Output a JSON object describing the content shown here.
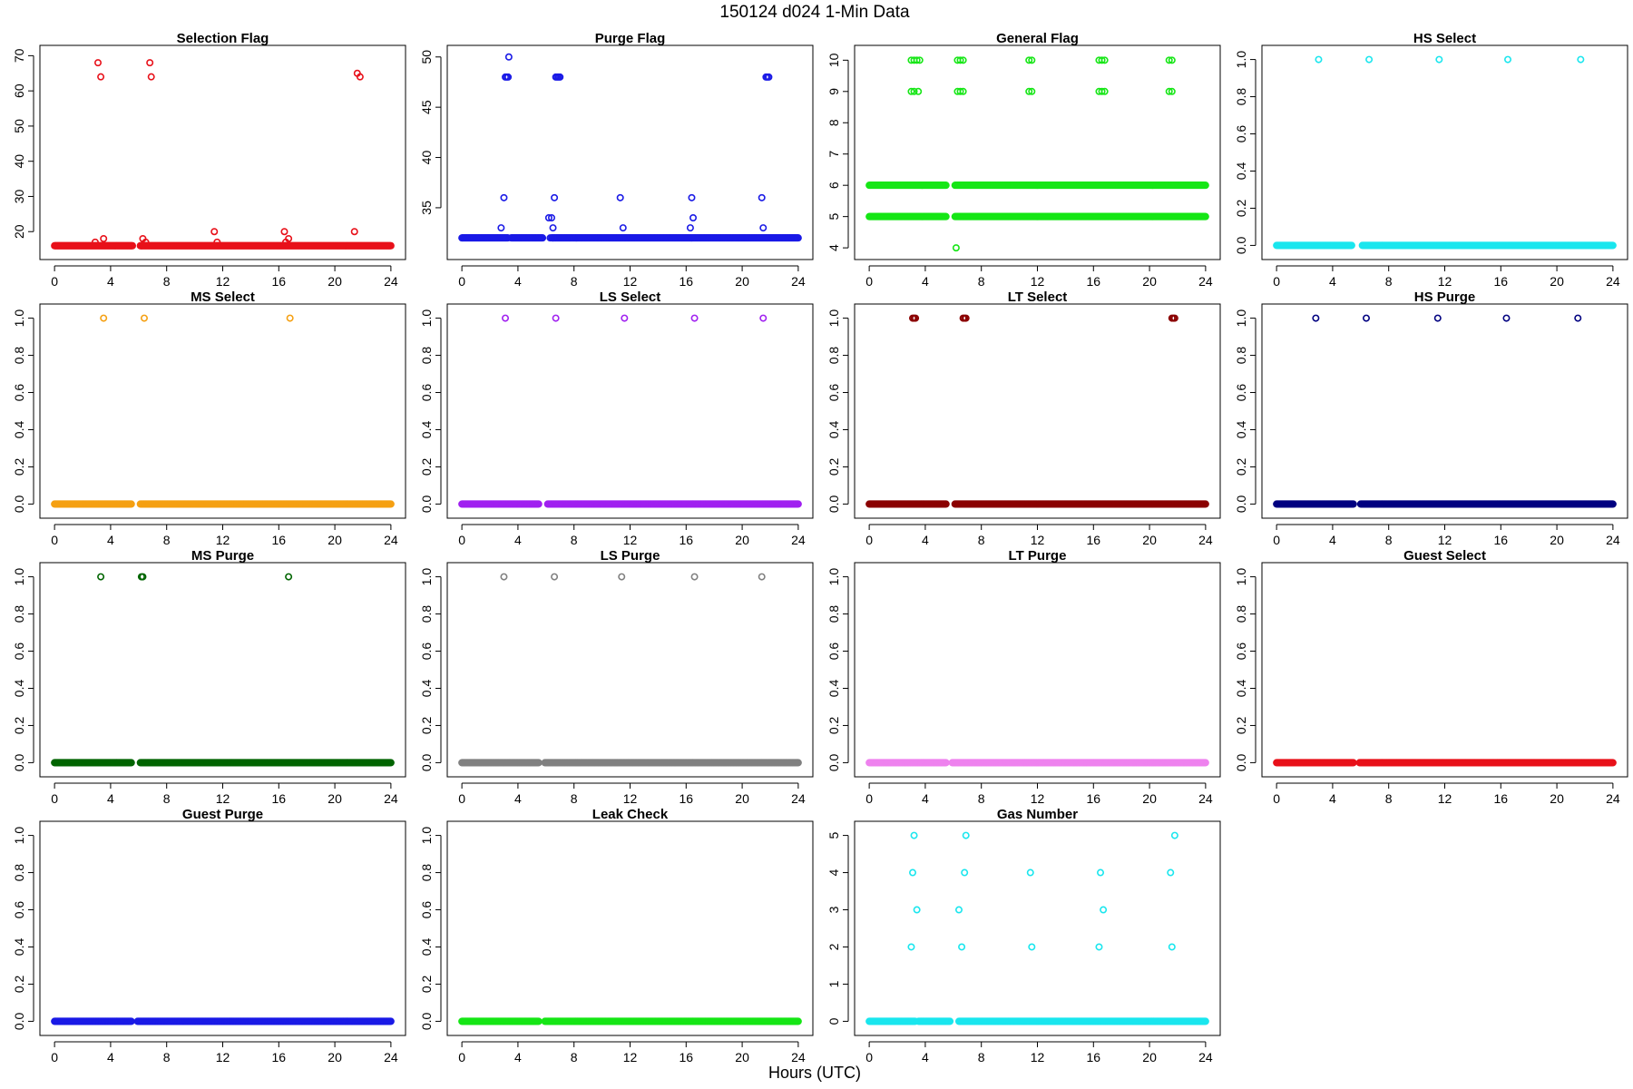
{
  "title": "150124   d024   1-Min Data",
  "xlabel": "Hours (UTC)",
  "chart_data": [
    {
      "type": "scatter",
      "title": "Selection Flag",
      "color": "#e8111a",
      "xlim": [
        0,
        24
      ],
      "ylim": [
        14.5,
        70.5
      ],
      "xticks": [
        0,
        4,
        8,
        12,
        16,
        20,
        24
      ],
      "yticks": [
        20,
        30,
        40,
        50,
        60,
        70
      ],
      "baseline": 16,
      "gaps": [
        [
          5.6,
          6.1
        ]
      ],
      "points": [
        [
          3.1,
          68
        ],
        [
          3.3,
          64
        ],
        [
          3.5,
          18
        ],
        [
          2.9,
          17
        ],
        [
          6.3,
          18
        ],
        [
          6.2,
          16
        ],
        [
          6.5,
          17
        ],
        [
          6.8,
          68
        ],
        [
          6.9,
          64
        ],
        [
          11.4,
          20
        ],
        [
          11.6,
          17
        ],
        [
          16.4,
          20
        ],
        [
          16.5,
          17
        ],
        [
          16.7,
          18
        ],
        [
          21.4,
          20
        ],
        [
          21.6,
          65
        ],
        [
          21.8,
          64
        ]
      ]
    },
    {
      "type": "scatter",
      "title": "Purge Flag",
      "color": "#1a1ae6",
      "xlim": [
        0,
        24
      ],
      "ylim": [
        30.7,
        50.3
      ],
      "xticks": [
        0,
        4,
        8,
        12,
        16,
        20,
        24
      ],
      "yticks": [
        35,
        40,
        45,
        50
      ],
      "baseline": 32,
      "gaps": [
        [
          3.3,
          3.5
        ],
        [
          5.8,
          6.4
        ]
      ],
      "points": [
        [
          3.1,
          48
        ],
        [
          3.2,
          48
        ],
        [
          3.3,
          48
        ],
        [
          3.35,
          50
        ],
        [
          3.0,
          36
        ],
        [
          2.8,
          33
        ],
        [
          6.2,
          34
        ],
        [
          6.4,
          34
        ],
        [
          6.5,
          33
        ],
        [
          6.6,
          36
        ],
        [
          6.7,
          48
        ],
        [
          6.8,
          48
        ],
        [
          6.9,
          48
        ],
        [
          7.0,
          48
        ],
        [
          6.3,
          32
        ],
        [
          6.5,
          32
        ],
        [
          11.3,
          36
        ],
        [
          11.5,
          33
        ],
        [
          16.4,
          36
        ],
        [
          16.5,
          34
        ],
        [
          16.3,
          33
        ],
        [
          21.4,
          36
        ],
        [
          21.5,
          33
        ],
        [
          21.7,
          48
        ],
        [
          21.8,
          48
        ],
        [
          21.9,
          48
        ]
      ]
    },
    {
      "type": "scatter",
      "title": "General Flag",
      "color": "#16e616",
      "xlim": [
        0,
        24
      ],
      "ylim": [
        3.9,
        10.2
      ],
      "xticks": [
        0,
        4,
        8,
        12,
        16,
        20,
        24
      ],
      "yticks": [
        4,
        5,
        6,
        7,
        8,
        9,
        10
      ],
      "baseline": [
        5,
        6
      ],
      "gaps": [
        [
          5.5,
          6.1
        ]
      ],
      "points": [
        [
          3.0,
          10
        ],
        [
          3.2,
          10
        ],
        [
          3.4,
          10
        ],
        [
          3.6,
          10
        ],
        [
          3.0,
          9
        ],
        [
          3.2,
          9
        ],
        [
          3.5,
          9
        ],
        [
          6.3,
          10
        ],
        [
          6.5,
          10
        ],
        [
          6.7,
          10
        ],
        [
          6.3,
          9
        ],
        [
          6.5,
          9
        ],
        [
          6.7,
          9
        ],
        [
          11.4,
          10
        ],
        [
          11.6,
          10
        ],
        [
          11.4,
          9
        ],
        [
          11.6,
          9
        ],
        [
          16.4,
          10
        ],
        [
          16.6,
          10
        ],
        [
          16.8,
          10
        ],
        [
          16.4,
          9
        ],
        [
          16.6,
          9
        ],
        [
          16.8,
          9
        ],
        [
          21.4,
          10
        ],
        [
          21.6,
          10
        ],
        [
          21.4,
          9
        ],
        [
          21.6,
          9
        ],
        [
          6.2,
          4
        ]
      ]
    },
    {
      "type": "scatter",
      "title": "HS Select",
      "color": "#1ae6ee",
      "xlim": [
        0,
        24
      ],
      "ylim": [
        -0.03,
        1.03
      ],
      "xticks": [
        0,
        4,
        8,
        12,
        16,
        20,
        24
      ],
      "yticks": [
        0.0,
        0.2,
        0.4,
        0.6,
        0.8,
        1.0
      ],
      "baseline": 0,
      "gaps": [
        [
          5.4,
          6.1
        ]
      ],
      "points": [
        [
          3.0,
          1
        ],
        [
          6.6,
          1
        ],
        [
          11.6,
          1
        ],
        [
          16.5,
          1
        ],
        [
          21.7,
          1
        ]
      ]
    },
    {
      "type": "scatter",
      "title": "MS Select",
      "color": "#f5a012",
      "xlim": [
        0,
        24
      ],
      "ylim": [
        -0.03,
        1.03
      ],
      "xticks": [
        0,
        4,
        8,
        12,
        16,
        20,
        24
      ],
      "yticks": [
        0.0,
        0.2,
        0.4,
        0.6,
        0.8,
        1.0
      ],
      "baseline": 0,
      "gaps": [
        [
          5.5,
          6.1
        ]
      ],
      "points": [
        [
          3.5,
          1
        ],
        [
          6.4,
          1
        ],
        [
          16.8,
          1
        ]
      ]
    },
    {
      "type": "scatter",
      "title": "LS Select",
      "color": "#a020f0",
      "xlim": [
        0,
        24
      ],
      "ylim": [
        -0.03,
        1.03
      ],
      "xticks": [
        0,
        4,
        8,
        12,
        16,
        20,
        24
      ],
      "yticks": [
        0.0,
        0.2,
        0.4,
        0.6,
        0.8,
        1.0
      ],
      "baseline": 0,
      "gaps": [
        [
          5.5,
          6.1
        ]
      ],
      "points": [
        [
          3.1,
          1
        ],
        [
          6.7,
          1
        ],
        [
          11.6,
          1
        ],
        [
          16.6,
          1
        ],
        [
          21.5,
          1
        ]
      ]
    },
    {
      "type": "scatter",
      "title": "LT Select",
      "color": "#8b0000",
      "xlim": [
        0,
        24
      ],
      "ylim": [
        -0.03,
        1.03
      ],
      "xticks": [
        0,
        4,
        8,
        12,
        16,
        20,
        24
      ],
      "yticks": [
        0.0,
        0.2,
        0.4,
        0.6,
        0.8,
        1.0
      ],
      "baseline": 0,
      "gaps": [
        [
          5.5,
          6.1
        ]
      ],
      "points": [
        [
          3.1,
          1
        ],
        [
          3.2,
          1
        ],
        [
          3.3,
          1
        ],
        [
          6.7,
          1
        ],
        [
          6.8,
          1
        ],
        [
          6.9,
          1
        ],
        [
          21.6,
          1
        ],
        [
          21.7,
          1
        ],
        [
          21.8,
          1
        ]
      ]
    },
    {
      "type": "scatter",
      "title": "HS Purge",
      "color": "#000080",
      "xlim": [
        0,
        24
      ],
      "ylim": [
        -0.03,
        1.03
      ],
      "xticks": [
        0,
        4,
        8,
        12,
        16,
        20,
        24
      ],
      "yticks": [
        0.0,
        0.2,
        0.4,
        0.6,
        0.8,
        1.0
      ],
      "baseline": 0,
      "gaps": [
        [
          5.5,
          6.0
        ]
      ],
      "points": [
        [
          2.8,
          1
        ],
        [
          6.4,
          1
        ],
        [
          11.5,
          1
        ],
        [
          16.4,
          1
        ],
        [
          21.5,
          1
        ]
      ]
    },
    {
      "type": "scatter",
      "title": "MS Purge",
      "color": "#006400",
      "xlim": [
        0,
        24
      ],
      "ylim": [
        -0.03,
        1.03
      ],
      "xticks": [
        0,
        4,
        8,
        12,
        16,
        20,
        24
      ],
      "yticks": [
        0.0,
        0.2,
        0.4,
        0.6,
        0.8,
        1.0
      ],
      "baseline": 0,
      "gaps": [
        [
          5.5,
          6.1
        ]
      ],
      "points": [
        [
          3.3,
          1
        ],
        [
          6.2,
          1
        ],
        [
          6.3,
          1
        ],
        [
          16.7,
          1
        ]
      ]
    },
    {
      "type": "scatter",
      "title": "LS Purge",
      "color": "#808080",
      "xlim": [
        0,
        24
      ],
      "ylim": [
        -0.03,
        1.03
      ],
      "xticks": [
        0,
        4,
        8,
        12,
        16,
        20,
        24
      ],
      "yticks": [
        0.0,
        0.2,
        0.4,
        0.6,
        0.8,
        1.0
      ],
      "baseline": 0,
      "gaps": [
        [
          5.5,
          5.9
        ]
      ],
      "points": [
        [
          3.0,
          1
        ],
        [
          6.6,
          1
        ],
        [
          11.4,
          1
        ],
        [
          16.6,
          1
        ],
        [
          21.4,
          1
        ]
      ]
    },
    {
      "type": "scatter",
      "title": "LT Purge",
      "color": "#ee82ee",
      "xlim": [
        0,
        24
      ],
      "ylim": [
        -0.03,
        1.03
      ],
      "xticks": [
        0,
        4,
        8,
        12,
        16,
        20,
        24
      ],
      "yticks": [
        0.0,
        0.2,
        0.4,
        0.6,
        0.8,
        1.0
      ],
      "baseline": 0,
      "gaps": [
        [
          5.5,
          5.9
        ]
      ],
      "points": []
    },
    {
      "type": "scatter",
      "title": "Guest Select",
      "color": "#e8111a",
      "xlim": [
        0,
        24
      ],
      "ylim": [
        -0.03,
        1.03
      ],
      "xticks": [
        0,
        4,
        8,
        12,
        16,
        20,
        24
      ],
      "yticks": [
        0.0,
        0.2,
        0.4,
        0.6,
        0.8,
        1.0
      ],
      "baseline": 0,
      "gaps": [
        [
          5.5,
          5.9
        ]
      ],
      "points": []
    },
    {
      "type": "scatter",
      "title": "Guest Purge",
      "color": "#1a1ae6",
      "xlim": [
        0,
        24
      ],
      "ylim": [
        -0.03,
        1.03
      ],
      "xticks": [
        0,
        4,
        8,
        12,
        16,
        20,
        24
      ],
      "yticks": [
        0.0,
        0.2,
        0.4,
        0.6,
        0.8,
        1.0
      ],
      "baseline": 0,
      "gaps": [
        [
          5.5,
          5.9
        ]
      ],
      "points": []
    },
    {
      "type": "scatter",
      "title": "Leak Check",
      "color": "#16e616",
      "xlim": [
        0,
        24
      ],
      "ylim": [
        -0.03,
        1.03
      ],
      "xticks": [
        0,
        4,
        8,
        12,
        16,
        20,
        24
      ],
      "yticks": [
        0.0,
        0.2,
        0.4,
        0.6,
        0.8,
        1.0
      ],
      "baseline": 0,
      "gaps": [
        [
          5.5,
          5.9
        ]
      ],
      "points": []
    },
    {
      "type": "scatter",
      "title": "Gas Number",
      "color": "#1ae6ee",
      "xlim": [
        0,
        24
      ],
      "ylim": [
        -0.15,
        5.15
      ],
      "xticks": [
        0,
        4,
        8,
        12,
        16,
        20,
        24
      ],
      "yticks": [
        0,
        1,
        2,
        3,
        4,
        5
      ],
      "baseline": 0,
      "gaps": [
        [
          3.3,
          3.5
        ],
        [
          5.8,
          6.4
        ]
      ],
      "points": [
        [
          3.2,
          5
        ],
        [
          6.9,
          5
        ],
        [
          21.8,
          5
        ],
        [
          3.1,
          4
        ],
        [
          6.8,
          4
        ],
        [
          11.5,
          4
        ],
        [
          16.5,
          4
        ],
        [
          21.5,
          4
        ],
        [
          3.4,
          3
        ],
        [
          6.4,
          3
        ],
        [
          16.7,
          3
        ],
        [
          3.0,
          2
        ],
        [
          6.6,
          2
        ],
        [
          11.6,
          2
        ],
        [
          16.4,
          2
        ],
        [
          21.6,
          2
        ]
      ]
    }
  ]
}
